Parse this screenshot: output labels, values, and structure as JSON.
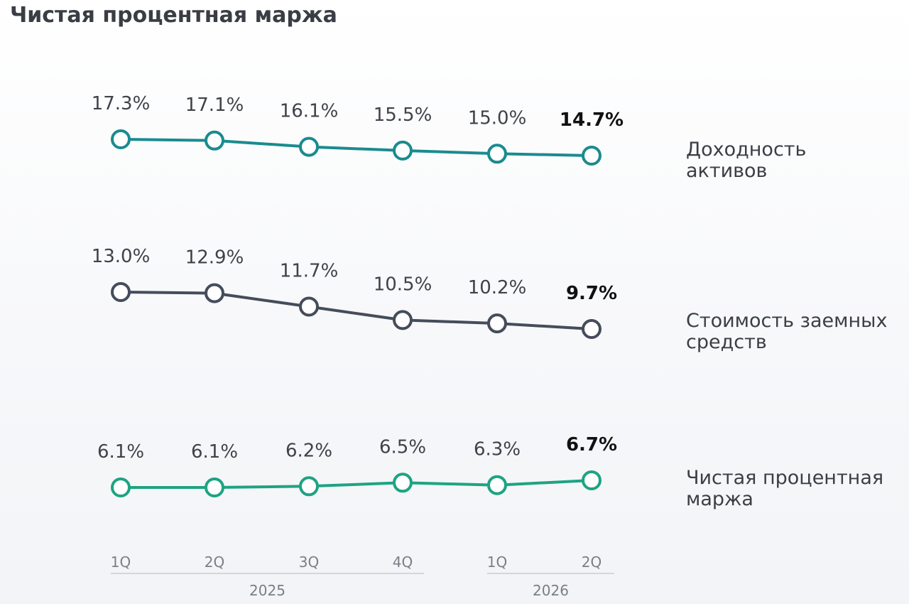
{
  "title": "Чистая процентная маржа",
  "chart_data": {
    "type": "line",
    "categories": [
      "1Q",
      "2Q",
      "3Q",
      "4Q",
      "1Q",
      "2Q"
    ],
    "year_groups": [
      {
        "label": "2025",
        "start": 0,
        "end": 3
      },
      {
        "label": "2026",
        "start": 4,
        "end": 5
      }
    ],
    "series": [
      {
        "key": "yield",
        "name_line1": "Доходность",
        "name_line2": "активов",
        "values": [
          17.3,
          17.1,
          16.1,
          15.5,
          15.0,
          14.7
        ],
        "labels": [
          "17.3%",
          "17.1%",
          "16.1%",
          "15.5%",
          "15.0%",
          "14.7%"
        ],
        "color": "#1a8b8f"
      },
      {
        "key": "cost",
        "name_line1": "Стоимость заемных",
        "name_line2": "средств",
        "values": [
          13.0,
          12.9,
          11.7,
          10.5,
          10.2,
          9.7
        ],
        "labels": [
          "13.0%",
          "12.9%",
          "11.7%",
          "10.5%",
          "10.2%",
          "9.7%"
        ],
        "color": "#454c5a"
      },
      {
        "key": "nim",
        "name_line1": "Чистая процентная",
        "name_line2": "маржа",
        "values": [
          6.1,
          6.1,
          6.2,
          6.5,
          6.3,
          6.7
        ],
        "labels": [
          "6.1%",
          "6.1%",
          "6.2%",
          "6.5%",
          "6.3%",
          "6.7%"
        ],
        "color": "#1fa382"
      }
    ],
    "highlight_last": true,
    "grid": false,
    "legend": "right"
  }
}
